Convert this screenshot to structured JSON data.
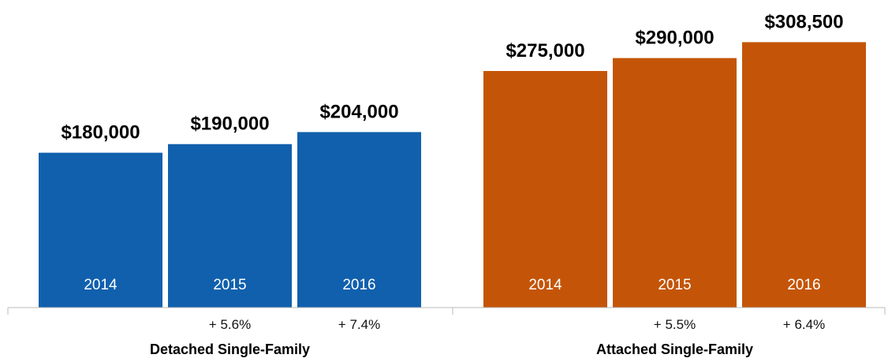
{
  "chart_data": {
    "type": "bar",
    "groups": [
      {
        "label": "Detached Single-Family",
        "color": "#1160ad",
        "bars": [
          {
            "category": "2014",
            "value": 180000,
            "value_label": "$180,000",
            "change": ""
          },
          {
            "category": "2015",
            "value": 190000,
            "value_label": "$190,000",
            "change": "+ 5.6%"
          },
          {
            "category": "2016",
            "value": 204000,
            "value_label": "$204,000",
            "change": "+ 7.4%"
          }
        ]
      },
      {
        "label": "Attached Single-Family",
        "color": "#c45508",
        "bars": [
          {
            "category": "2014",
            "value": 275000,
            "value_label": "$275,000",
            "change": ""
          },
          {
            "category": "2015",
            "value": 290000,
            "value_label": "$290,000",
            "change": "+ 5.5%"
          },
          {
            "category": "2016",
            "value": 308500,
            "value_label": "$308,500",
            "change": "+ 6.4%"
          }
        ]
      }
    ],
    "ylim": [
      0,
      330000
    ],
    "grid": false,
    "legend": "none"
  }
}
